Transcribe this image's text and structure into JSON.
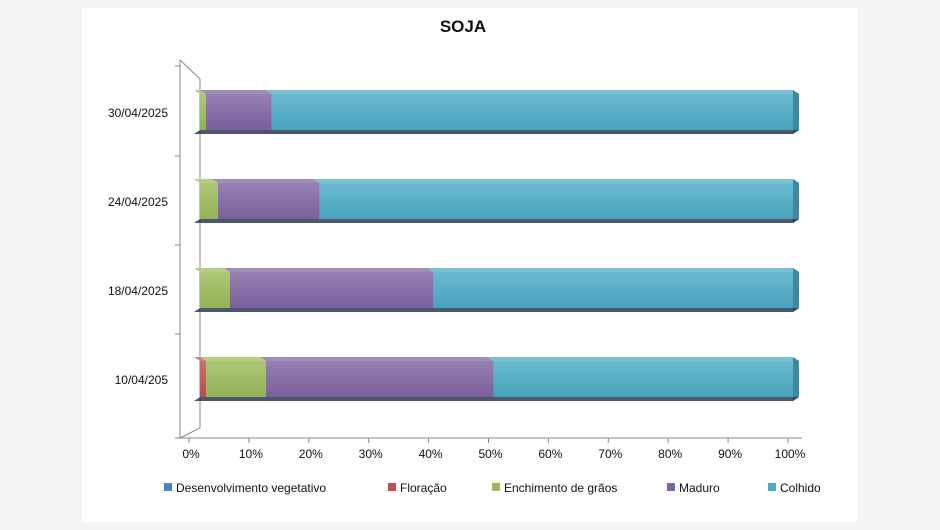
{
  "chart_data": {
    "type": "bar",
    "orientation": "horizontal",
    "stacked": "percent",
    "title": "SOJA",
    "xlabel": "",
    "ylabel": "",
    "xlim": [
      0,
      100
    ],
    "x_ticks": [
      "0%",
      "10%",
      "20%",
      "30%",
      "40%",
      "50%",
      "60%",
      "70%",
      "80%",
      "90%",
      "100%"
    ],
    "categories": [
      "30/04/2025",
      "24/04/2025",
      "18/04/2025",
      "10/04/205"
    ],
    "series": [
      {
        "name": "Desenvolvimento vegetativo",
        "color": "#4f81bd",
        "values": [
          0,
          0,
          0,
          0
        ]
      },
      {
        "name": "Floração",
        "color": "#c0504d",
        "values": [
          0,
          0,
          0,
          1
        ]
      },
      {
        "name": "Enchimento de grãos",
        "color": "#9bbb59",
        "values": [
          1,
          3,
          5,
          10
        ]
      },
      {
        "name": "Maduro",
        "color": "#8064a2",
        "values": [
          11,
          17,
          34,
          38
        ]
      },
      {
        "name": "Colhido",
        "color": "#4bacc6",
        "values": [
          88,
          80,
          61,
          51
        ]
      }
    ],
    "legend_position": "bottom",
    "grid": false
  }
}
